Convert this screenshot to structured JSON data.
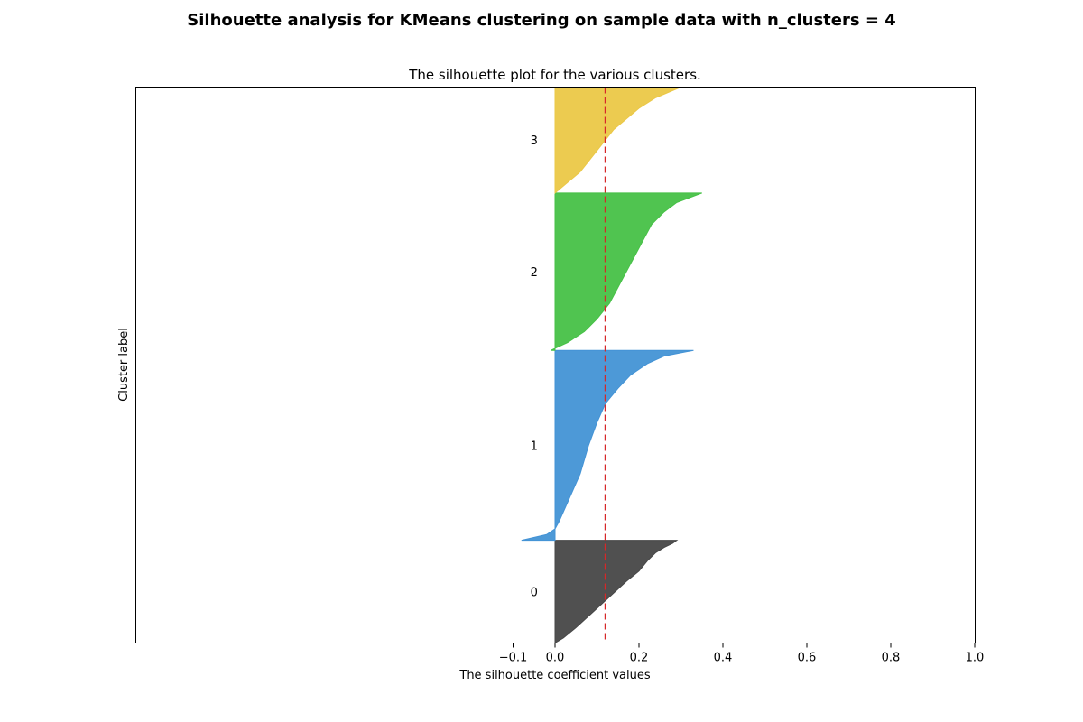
{
  "suptitle": "Silhouette analysis for KMeans clustering on sample data with n_clusters = 4",
  "chart_data": {
    "type": "area",
    "title": "The silhouette plot for the various clusters.",
    "xlabel": "The silhouette coefficient values",
    "ylabel": "Cluster label",
    "xlim": [
      -0.1,
      1.0
    ],
    "xticks": [
      -0.1,
      0.0,
      0.2,
      0.4,
      0.6,
      0.8,
      1.0
    ],
    "xtick_labels": [
      "−0.1",
      "0.0",
      "0.2",
      "0.4",
      "0.6",
      "0.8",
      "1.0"
    ],
    "yticks_visible": false,
    "average_silhouette": 0.12,
    "ylim": [
      0,
      530
    ],
    "clusters": [
      {
        "label": "0",
        "color": "#4d4d4d",
        "y_lower": 0,
        "y_upper": 98,
        "profile": [
          [
            0,
            0.0
          ],
          [
            0.05,
            0.02
          ],
          [
            0.15,
            0.05
          ],
          [
            0.3,
            0.09
          ],
          [
            0.45,
            0.13
          ],
          [
            0.6,
            0.17
          ],
          [
            0.7,
            0.2
          ],
          [
            0.8,
            0.22
          ],
          [
            0.88,
            0.24
          ],
          [
            0.93,
            0.26
          ],
          [
            0.97,
            0.28
          ],
          [
            1.0,
            0.29
          ]
        ]
      },
      {
        "label": "1",
        "color": "#4aa0e8",
        "y_lower": 98,
        "y_upper": 279,
        "profile": [
          [
            0,
            -0.08
          ],
          [
            0.03,
            -0.02
          ],
          [
            0.06,
            0.0
          ],
          [
            0.1,
            0.01
          ],
          [
            0.2,
            0.03
          ],
          [
            0.35,
            0.06
          ],
          [
            0.5,
            0.08
          ],
          [
            0.62,
            0.1
          ],
          [
            0.72,
            0.12
          ],
          [
            0.8,
            0.15
          ],
          [
            0.87,
            0.18
          ],
          [
            0.93,
            0.22
          ],
          [
            0.97,
            0.26
          ],
          [
            1.0,
            0.33
          ]
        ]
      },
      {
        "label": "2",
        "color": "#4dd24d",
        "y_lower": 279,
        "y_upper": 429,
        "profile": [
          [
            0,
            -0.01
          ],
          [
            0.05,
            0.03
          ],
          [
            0.12,
            0.07
          ],
          [
            0.2,
            0.1
          ],
          [
            0.3,
            0.13
          ],
          [
            0.4,
            0.15
          ],
          [
            0.5,
            0.17
          ],
          [
            0.6,
            0.19
          ],
          [
            0.7,
            0.21
          ],
          [
            0.8,
            0.23
          ],
          [
            0.88,
            0.26
          ],
          [
            0.94,
            0.29
          ],
          [
            1.0,
            0.35
          ]
        ]
      },
      {
        "label": "3",
        "color": "#ffd94d",
        "y_lower": 429,
        "y_upper": 530,
        "profile": [
          [
            0,
            0.0
          ],
          [
            0.1,
            0.03
          ],
          [
            0.2,
            0.06
          ],
          [
            0.3,
            0.08
          ],
          [
            0.45,
            0.11
          ],
          [
            0.6,
            0.14
          ],
          [
            0.7,
            0.17
          ],
          [
            0.8,
            0.2
          ],
          [
            0.9,
            0.24
          ],
          [
            1.0,
            0.3
          ]
        ]
      }
    ]
  }
}
